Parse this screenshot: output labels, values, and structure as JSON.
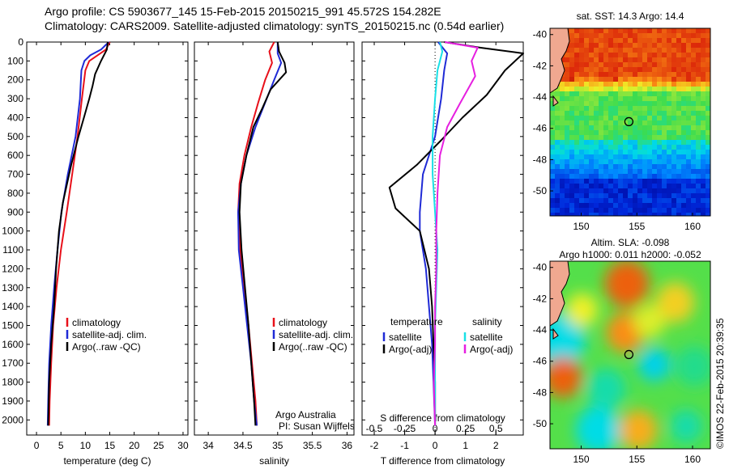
{
  "header": {
    "line1": "Argo profile: CS 5903677_145 15-Feb-2015 20150215_991 45.572S 154.282E",
    "line2": "Climatology: CARS2009. Satellite-adjusted climatology: synTS_20150215.nc (0.54d earlier)"
  },
  "side_credit": "©IMOS 22-Feb-2015 20:39:35",
  "colors": {
    "red": "#e8101a",
    "blue": "#1f2ad6",
    "black": "#000000",
    "cyan": "#19e0e6",
    "magenta": "#e61fe0"
  },
  "profile_axes": {
    "depth_ylim": [
      0,
      2080
    ],
    "depth_ticks": [
      "0",
      "100",
      "200",
      "300",
      "400",
      "500",
      "600",
      "700",
      "800",
      "900",
      "1000",
      "1100",
      "1200",
      "1300",
      "1400",
      "1500",
      "1600",
      "1700",
      "1800",
      "1900",
      "2000"
    ]
  },
  "chart_data": [
    {
      "type": "line",
      "panel": "temperature",
      "xlabel": "temperature (deg C)",
      "xlim": [
        -2,
        31
      ],
      "xticks": [
        "0",
        "5",
        "10",
        "15",
        "20",
        "25",
        "30"
      ],
      "legend": {
        "position": "bottom-right",
        "items": [
          "climatology",
          "satellite-adj. clim.",
          "Argo(..raw -QC)"
        ]
      },
      "series": [
        {
          "name": "climatology",
          "color": "red",
          "points": [
            [
              15.0,
              0
            ],
            [
              14.2,
              40
            ],
            [
              12.5,
              70
            ],
            [
              10.8,
              100
            ],
            [
              10.0,
              150
            ],
            [
              9.3,
              300
            ],
            [
              8.4,
              500
            ],
            [
              7.3,
              700
            ],
            [
              6.2,
              900
            ],
            [
              5.0,
              1100
            ],
            [
              4.1,
              1300
            ],
            [
              3.4,
              1500
            ],
            [
              3.0,
              1700
            ],
            [
              2.7,
              1900
            ],
            [
              2.6,
              2030
            ]
          ]
        },
        {
          "name": "satellite-adj. clim.",
          "color": "blue",
          "points": [
            [
              14.8,
              0
            ],
            [
              13.2,
              40
            ],
            [
              11.0,
              70
            ],
            [
              9.8,
              100
            ],
            [
              9.2,
              150
            ],
            [
              8.9,
              300
            ],
            [
              8.0,
              500
            ],
            [
              6.4,
              700
            ],
            [
              5.1,
              900
            ],
            [
              4.3,
              1100
            ],
            [
              3.6,
              1300
            ],
            [
              3.0,
              1500
            ],
            [
              2.6,
              1700
            ],
            [
              2.4,
              1900
            ],
            [
              2.3,
              2030
            ]
          ]
        },
        {
          "name": "Argo(..raw -QC)",
          "color": "black",
          "points": [
            [
              14.6,
              0
            ],
            [
              14.4,
              40
            ],
            [
              13.2,
              100
            ],
            [
              12.0,
              170
            ],
            [
              11.5,
              230
            ],
            [
              10.8,
              300
            ],
            [
              9.7,
              400
            ],
            [
              8.6,
              500
            ],
            [
              7.1,
              650
            ],
            [
              5.4,
              850
            ],
            [
              4.6,
              1000
            ],
            [
              4.0,
              1200
            ],
            [
              3.6,
              1400
            ],
            [
              3.0,
              1600
            ],
            [
              2.6,
              1800
            ],
            [
              2.4,
              2030
            ]
          ]
        }
      ]
    },
    {
      "type": "line",
      "panel": "salinity",
      "xlabel": "salinity",
      "xlim": [
        33.8,
        36.1
      ],
      "xticks": [
        "34",
        "34.5",
        "35",
        "35.5",
        "36"
      ],
      "legend": {
        "position": "bottom-right",
        "items": [
          "climatology",
          "satellite-adj. clim.",
          "Argo(..raw -QC)"
        ]
      },
      "annotation": [
        "Argo Australia",
        "PI: Susan Wijffels"
      ],
      "series": [
        {
          "name": "climatology",
          "color": "red",
          "points": [
            [
              34.95,
              0
            ],
            [
              34.88,
              50
            ],
            [
              34.92,
              110
            ],
            [
              34.82,
              200
            ],
            [
              34.72,
              320
            ],
            [
              34.62,
              450
            ],
            [
              34.52,
              600
            ],
            [
              34.45,
              750
            ],
            [
              34.43,
              900
            ],
            [
              34.46,
              1100
            ],
            [
              34.52,
              1300
            ],
            [
              34.58,
              1500
            ],
            [
              34.63,
              1700
            ],
            [
              34.68,
              1900
            ],
            [
              34.7,
              2030
            ]
          ]
        },
        {
          "name": "satellite-adj. clim.",
          "color": "blue",
          "points": [
            [
              35.0,
              0
            ],
            [
              35.0,
              60
            ],
            [
              35.05,
              110
            ],
            [
              34.95,
              200
            ],
            [
              34.82,
              320
            ],
            [
              34.68,
              450
            ],
            [
              34.55,
              600
            ],
            [
              34.47,
              750
            ],
            [
              34.43,
              900
            ],
            [
              34.44,
              1100
            ],
            [
              34.5,
              1300
            ],
            [
              34.56,
              1500
            ],
            [
              34.62,
              1700
            ],
            [
              34.66,
              1900
            ],
            [
              34.7,
              2030
            ]
          ]
        },
        {
          "name": "Argo(..raw -QC)",
          "color": "black",
          "points": [
            [
              35.0,
              0
            ],
            [
              35.02,
              50
            ],
            [
              35.1,
              110
            ],
            [
              35.12,
              160
            ],
            [
              34.9,
              250
            ],
            [
              34.78,
              350
            ],
            [
              34.65,
              450
            ],
            [
              34.55,
              600
            ],
            [
              34.47,
              750
            ],
            [
              34.45,
              900
            ],
            [
              34.48,
              1100
            ],
            [
              34.53,
              1300
            ],
            [
              34.58,
              1500
            ],
            [
              34.62,
              1700
            ],
            [
              34.66,
              1900
            ],
            [
              34.68,
              2030
            ]
          ]
        }
      ]
    },
    {
      "type": "line",
      "panel": "difference",
      "xlabel": "T difference from climatology",
      "top_label": "S difference from climatology",
      "xlim": [
        -2.4,
        2.9
      ],
      "xticks": [
        "-2",
        "-1",
        "0",
        "1",
        "2"
      ],
      "s_scale_factor": 4,
      "s_ticks": [
        "-0.5",
        "-0.25",
        "0",
        "0.25",
        "0.5"
      ],
      "legend": {
        "position": "bottom",
        "left_title": "temperature",
        "left_items": [
          "satellite",
          "Argo(-adj)"
        ],
        "right_title": "salinity",
        "right_items": [
          "satellite",
          "Argo(-adj)"
        ]
      },
      "series": [
        {
          "name": "satellite",
          "quantity": "temperature",
          "color": "blue",
          "points": [
            [
              0.1,
              0
            ],
            [
              0.4,
              60
            ],
            [
              0.3,
              150
            ],
            [
              0.2,
              300
            ],
            [
              0.0,
              500
            ],
            [
              -0.4,
              700
            ],
            [
              -0.5,
              900
            ],
            [
              -0.5,
              1000
            ],
            [
              -0.3,
              1200
            ],
            [
              -0.2,
              1400
            ],
            [
              -0.1,
              1600
            ],
            [
              -0.05,
              1800
            ],
            [
              0.0,
              2030
            ]
          ]
        },
        {
          "name": "Argo(-adj)",
          "quantity": "temperature",
          "color": "black",
          "points": [
            [
              0.3,
              0
            ],
            [
              1.5,
              30
            ],
            [
              2.9,
              60
            ],
            [
              2.3,
              150
            ],
            [
              1.7,
              280
            ],
            [
              0.9,
              400
            ],
            [
              0.2,
              520
            ],
            [
              -0.6,
              650
            ],
            [
              -1.5,
              770
            ],
            [
              -1.3,
              880
            ],
            [
              -0.5,
              1000
            ],
            [
              -0.2,
              1200
            ],
            [
              -0.1,
              1400
            ],
            [
              -0.05,
              1600
            ],
            [
              0.0,
              1800
            ],
            [
              0.0,
              2030
            ]
          ]
        },
        {
          "name": "satellite",
          "quantity": "salinity",
          "color": "cyan",
          "points": [
            [
              0.04,
              0
            ],
            [
              0.06,
              50
            ],
            [
              0.02,
              150
            ],
            [
              0.0,
              300
            ],
            [
              -0.02,
              500
            ],
            [
              -0.02,
              700
            ],
            [
              0.0,
              900
            ],
            [
              0.02,
              1100
            ],
            [
              0.01,
              1300
            ],
            [
              0.0,
              1500
            ],
            [
              0.0,
              1700
            ],
            [
              0.0,
              2030
            ]
          ]
        },
        {
          "name": "Argo(-adj)",
          "quantity": "salinity",
          "color": "magenta",
          "points": [
            [
              0.08,
              0
            ],
            [
              0.35,
              30
            ],
            [
              0.3,
              100
            ],
            [
              0.33,
              180
            ],
            [
              0.2,
              330
            ],
            [
              0.1,
              450
            ],
            [
              0.04,
              600
            ],
            [
              0.02,
              800
            ],
            [
              0.01,
              1000
            ],
            [
              0.01,
              1200
            ],
            [
              0.0,
              1400
            ],
            [
              0.0,
              1600
            ],
            [
              -0.01,
              1800
            ],
            [
              0.0,
              2030
            ]
          ]
        }
      ]
    },
    {
      "type": "heatmap",
      "panel": "map-sst",
      "title": "sat. SST: 14.3  Argo: 14.4",
      "xlim": [
        147.2,
        161.6
      ],
      "ylim": [
        -51.6,
        -39.6
      ],
      "xticks": [
        "150",
        "155",
        "160"
      ],
      "yticks": [
        "-40",
        "-42",
        "-44",
        "-46",
        "-48",
        "-50"
      ],
      "marker": [
        154.282,
        -45.572
      ]
    },
    {
      "type": "heatmap",
      "panel": "map-sla",
      "title_lines": [
        "Altim. SLA: -0.098",
        "Argo h1000: 0.011  h2000: -0.052"
      ],
      "xlim": [
        147.2,
        161.6
      ],
      "ylim": [
        -51.6,
        -39.6
      ],
      "xticks": [
        "150",
        "155",
        "160"
      ],
      "yticks": [
        "-40",
        "-42",
        "-44",
        "-46",
        "-48",
        "-50"
      ],
      "marker": [
        154.282,
        -45.572
      ]
    }
  ]
}
